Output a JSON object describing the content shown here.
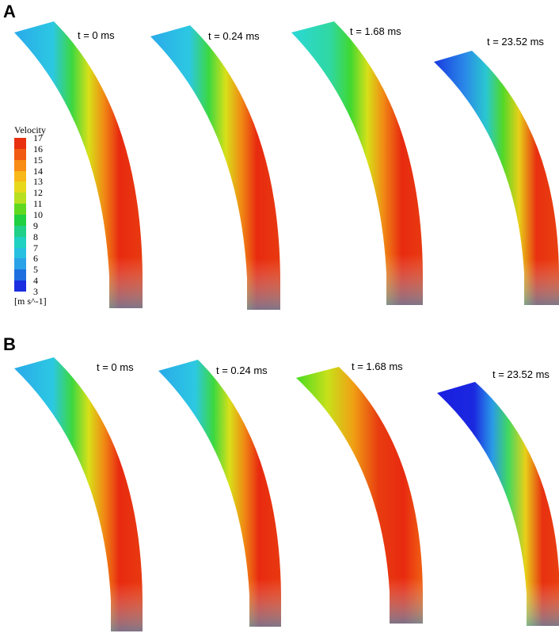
{
  "panels": [
    {
      "label": "A",
      "snapshots": [
        {
          "time_label": "t = 0 ms",
          "field": "steady"
        },
        {
          "time_label": "t = 0.24 ms",
          "field": "steady"
        },
        {
          "time_label": "t = 1.68 ms",
          "field": "elevated"
        },
        {
          "time_label": "t = 23.52 ms",
          "field": "decayed"
        }
      ]
    },
    {
      "label": "B",
      "snapshots": [
        {
          "time_label": "t = 0 ms",
          "field": "steady"
        },
        {
          "time_label": "t = 0.24 ms",
          "field": "steady"
        },
        {
          "time_label": "t = 1.68 ms",
          "field": "surge"
        },
        {
          "time_label": "t = 23.52 ms",
          "field": "collapsed"
        }
      ]
    }
  ],
  "legend": {
    "title": "Velocity",
    "unit": "[m s^-1]",
    "ticks": [
      "17",
      "16",
      "15",
      "14",
      "13",
      "12",
      "11",
      "10",
      "9",
      "8",
      "7",
      "6",
      "5",
      "4",
      "3"
    ],
    "colors": [
      "#e83010",
      "#f05a12",
      "#f88c14",
      "#f8b818",
      "#e8d81c",
      "#b8e020",
      "#60d820",
      "#20d040",
      "#20d088",
      "#20d0c0",
      "#28c0e0",
      "#2aa2e8",
      "#1e6ee0",
      "#1a2ee0"
    ]
  },
  "colors": {
    "blue_low": "#2a62e0",
    "cyan": "#2ab8ea",
    "green": "#3cd81c",
    "yellow": "#d8e018",
    "red_high": "#e82a10"
  }
}
